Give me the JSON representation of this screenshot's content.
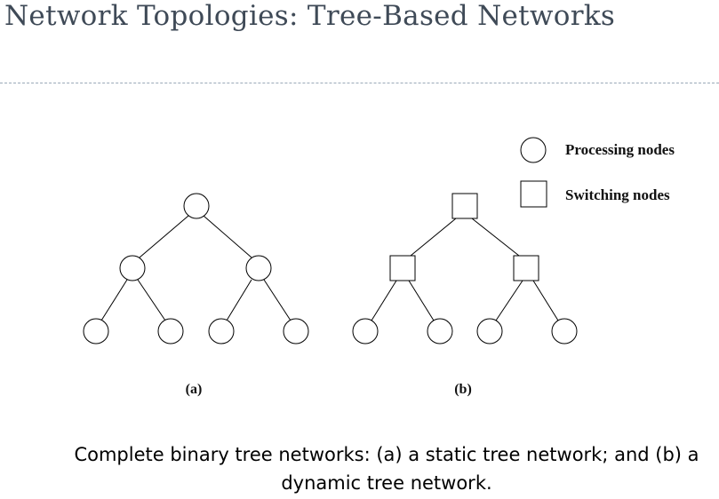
{
  "slide": {
    "title": "Network Topologies: Tree-Based Networks"
  },
  "legend": {
    "processing_label": "Processing nodes",
    "switching_label": "Switching nodes"
  },
  "diagrams": {
    "a_label": "(a)",
    "b_label": "(b)"
  },
  "caption": {
    "line1": "Complete binary tree networks: (a) a static tree network; and (b) a",
    "line2": "dynamic tree network."
  },
  "colors": {
    "title": "#3f4a57",
    "rule": "#9aa9b8",
    "stroke": "#000000"
  }
}
